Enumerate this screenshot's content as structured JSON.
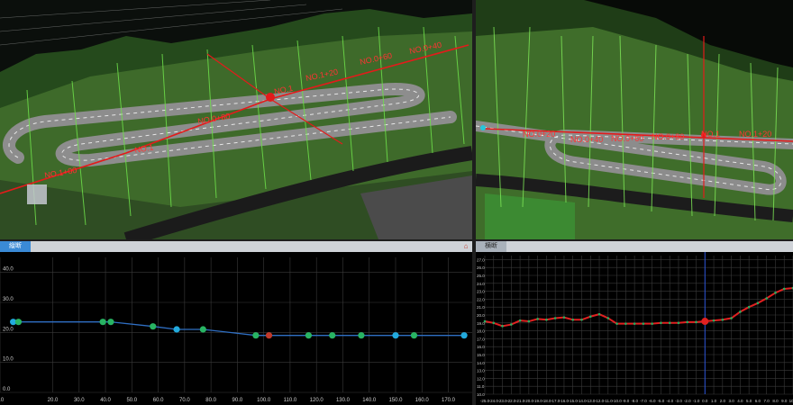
{
  "left_view": {
    "station_labels": [
      "NO.1+20",
      "NO.1",
      "NO.0+80",
      "NO.0+60",
      "NO.0+40",
      "NO.0+20",
      "NO.1+00"
    ],
    "marker_label": "NO.1"
  },
  "right_view": {
    "station_labels": [
      "NO.0+20",
      "NO.0+40",
      "NO.0+60",
      "NO.0+80",
      "NO.1",
      "NO.1+20"
    ]
  },
  "longitudinal": {
    "tab_label": "縦断",
    "home_icon": "home-icon",
    "y_ticks": [
      "40.0",
      "30.0",
      "20.0",
      "10.0",
      "0.0"
    ],
    "x_ticks": [
      "0.0",
      "20.0",
      "30.0",
      "40.0",
      "50.0",
      "60.0",
      "70.0",
      "80.0",
      "90.0",
      "100.0",
      "110.0",
      "120.0",
      "130.0",
      "140.0",
      "150.0",
      "160.0",
      "170.0"
    ],
    "colors": {
      "line": "#2f6fc4",
      "point": "#28b463",
      "selected": "#c0392b",
      "cyan": "#22aadd"
    }
  },
  "cross": {
    "tab_label": "横断",
    "y_ticks": [
      "27.0",
      "26.0",
      "25.0",
      "24.0",
      "23.0",
      "22.0",
      "21.0",
      "20.0",
      "19.0",
      "18.0",
      "17.0",
      "16.0",
      "15.0",
      "14.0",
      "13.0",
      "12.0",
      "11.0",
      "10.0"
    ],
    "x_ticks": [
      "-25.0",
      "-24.0",
      "-23.0",
      "-22.0",
      "-21.0",
      "-20.0",
      "-19.0",
      "-18.0",
      "-17.0",
      "-16.0",
      "-15.0",
      "-14.0",
      "-13.0",
      "-12.0",
      "-11.0",
      "-10.0",
      "-9.0",
      "-8.0",
      "-7.0",
      "-6.0",
      "-5.0",
      "-4.0",
      "-3.0",
      "-2.0",
      "-1.0",
      "0.0",
      "1.0",
      "2.0",
      "3.0",
      "4.0",
      "5.0",
      "6.0",
      "7.0",
      "8.0",
      "9.0",
      "10.0"
    ],
    "colors": {
      "line": "#e02020",
      "point": "#27ae60",
      "center": "#2b55d9"
    }
  },
  "chart_data": [
    {
      "type": "line",
      "title": "縦断",
      "x": [
        5,
        7,
        39,
        42,
        58,
        67,
        77,
        97,
        102,
        117,
        126,
        137,
        150,
        157,
        176
      ],
      "y": [
        23.5,
        23.5,
        23.5,
        23.5,
        22,
        21,
        21,
        19,
        19,
        19,
        19,
        19,
        19,
        19,
        19
      ],
      "xlim": [
        0,
        177
      ],
      "ylim": [
        0,
        45
      ],
      "grid": true,
      "selected_x": 102
    },
    {
      "type": "line",
      "title": "横断",
      "x": [
        -25,
        -24,
        -23,
        -22,
        -21,
        -20,
        -19,
        -18,
        -17,
        -16,
        -15,
        -14,
        -13,
        -12,
        -11,
        -10,
        -9,
        -8,
        -7,
        -6,
        -5,
        -4,
        -3,
        -2,
        -1,
        0,
        1,
        2,
        3,
        4,
        5,
        6,
        7,
        8,
        9,
        10
      ],
      "y": [
        19.2,
        19.0,
        18.6,
        18.8,
        19.3,
        19.2,
        19.5,
        19.4,
        19.6,
        19.7,
        19.4,
        19.4,
        19.8,
        20.1,
        19.6,
        18.9,
        18.9,
        18.9,
        18.9,
        18.9,
        19.0,
        19.0,
        19.0,
        19.1,
        19.1,
        19.2,
        19.3,
        19.4,
        19.6,
        20.4,
        21.0,
        21.5,
        22.1,
        22.8,
        23.3,
        23.4
      ],
      "xlim": [
        -25,
        10
      ],
      "ylim": [
        10,
        27.5
      ],
      "grid": true,
      "centerline_x": 0
    }
  ]
}
